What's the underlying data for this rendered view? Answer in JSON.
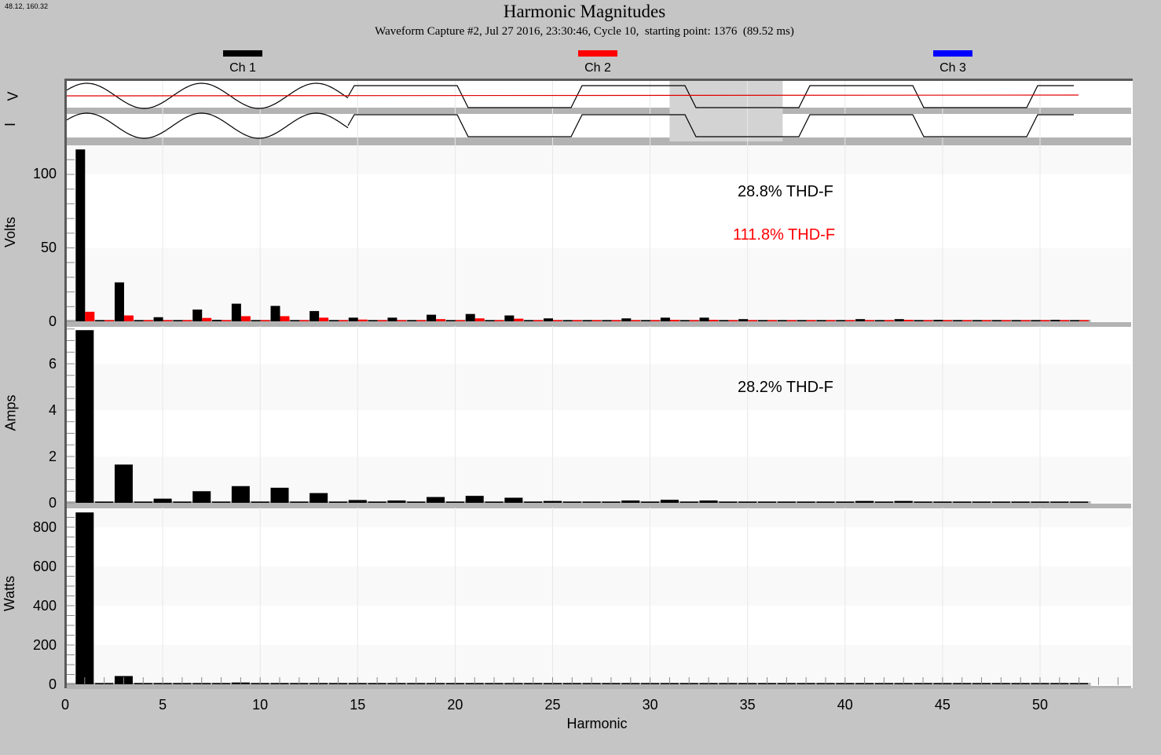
{
  "cursor_readout": "48.12, 160.32",
  "header": {
    "title": "Harmonic Magnitudes",
    "subtitle": "Waveform Capture #2, Jul 27 2016, 23:30:46, Cycle 10,  starting point: 1376  (89.52 ms)"
  },
  "legend": [
    {
      "label": "Ch 1",
      "color": "#000000"
    },
    {
      "label": "Ch 2",
      "color": "#ff0000"
    },
    {
      "label": "Ch 3",
      "color": "#0000ff"
    }
  ],
  "waveform_strip": {
    "labels": {
      "voltage": "V",
      "current": "I"
    },
    "highlight_window": {
      "start_harmonic_x": 31.0,
      "end_harmonic_x": 36.8
    }
  },
  "panels": {
    "volts": {
      "ylabel": "Volts",
      "yticks": [
        "0",
        "50",
        "100"
      ],
      "annotations": [
        {
          "text": "28.8% THD-F",
          "color": "#000000"
        },
        {
          "text": "111.8% THD-F",
          "color": "#ff0000"
        }
      ]
    },
    "amps": {
      "ylabel": "Amps",
      "yticks": [
        "0",
        "2",
        "4",
        "6"
      ],
      "annotations": [
        {
          "text": "28.2% THD-F",
          "color": "#000000"
        }
      ]
    },
    "watts": {
      "ylabel": "Watts",
      "yticks": [
        "0",
        "200",
        "400",
        "600",
        "800"
      ]
    }
  },
  "xaxis": {
    "label": "Harmonic",
    "ticks": [
      "0",
      "5",
      "10",
      "15",
      "20",
      "25",
      "30",
      "35",
      "40",
      "45",
      "50"
    ]
  },
  "chart_data": [
    {
      "type": "bar",
      "title": "Harmonic Magnitudes - Volts",
      "xlabel": "Harmonic",
      "ylabel": "Volts",
      "ylim": [
        0,
        120
      ],
      "grid": true,
      "categories": [
        1,
        2,
        3,
        4,
        5,
        6,
        7,
        8,
        9,
        10,
        11,
        12,
        13,
        14,
        15,
        16,
        17,
        18,
        19,
        20,
        21,
        22,
        23,
        24,
        25,
        26,
        27,
        28,
        29,
        30,
        31,
        32,
        33,
        34,
        35,
        36,
        37,
        38,
        39,
        40,
        41,
        42,
        43,
        44,
        45,
        46,
        47,
        48,
        49,
        50,
        51,
        52
      ],
      "series": [
        {
          "name": "Ch 1",
          "color": "#000000",
          "values": [
            117,
            0.8,
            26.5,
            0.3,
            2.8,
            0.3,
            8,
            1,
            12,
            0.8,
            10.5,
            0.3,
            7,
            0.3,
            2.5,
            0.3,
            2.5,
            0.3,
            4.5,
            0.3,
            5,
            0.3,
            4,
            0.3,
            2,
            0.3,
            0.3,
            0.3,
            2,
            0.3,
            2.5,
            0.3,
            2.5,
            0.3,
            1.5,
            0.3,
            0.3,
            0.3,
            0.3,
            0.3,
            1.5,
            0.3,
            1.5,
            0.3,
            1,
            0.3,
            0.3,
            0.3,
            0.3,
            0.3,
            1,
            0.3
          ]
        },
        {
          "name": "Ch 2",
          "color": "#ff0000",
          "values": [
            6.5,
            0.5,
            4,
            0.5,
            0.5,
            0.5,
            2.3,
            0.5,
            3.5,
            0.5,
            3.5,
            0.5,
            2.5,
            0.5,
            1.2,
            0.5,
            0.5,
            0.5,
            1.5,
            0.5,
            2,
            0.5,
            1.8,
            0.5,
            0.5,
            0.5,
            0.5,
            0.5,
            0.5,
            0.5,
            1,
            0.5,
            1,
            0.5,
            0.5,
            0.5,
            0.5,
            0.5,
            0.5,
            0.5,
            0.5,
            0.5,
            1,
            0.5,
            0.5,
            0.5,
            0.5,
            0.5,
            0.5,
            0.5,
            0.5,
            0.5
          ]
        }
      ],
      "annotations": [
        "28.8% THD-F",
        "111.8% THD-F"
      ]
    },
    {
      "type": "bar",
      "title": "Harmonic Magnitudes - Amps",
      "xlabel": "Harmonic",
      "ylabel": "Amps",
      "ylim": [
        0,
        7.5
      ],
      "grid": true,
      "categories": [
        1,
        2,
        3,
        4,
        5,
        6,
        7,
        8,
        9,
        10,
        11,
        12,
        13,
        14,
        15,
        16,
        17,
        18,
        19,
        20,
        21,
        22,
        23,
        24,
        25,
        26,
        27,
        28,
        29,
        30,
        31,
        32,
        33,
        34,
        35,
        36,
        37,
        38,
        39,
        40,
        41,
        42,
        43,
        44,
        45,
        46,
        47,
        48,
        49,
        50,
        51,
        52
      ],
      "series": [
        {
          "name": "Ch 1",
          "color": "#000000",
          "values": [
            7.45,
            0.05,
            1.65,
            0.03,
            0.18,
            0.03,
            0.5,
            0.05,
            0.72,
            0.05,
            0.65,
            0.05,
            0.42,
            0.03,
            0.12,
            0.03,
            0.1,
            0.03,
            0.25,
            0.05,
            0.3,
            0.05,
            0.22,
            0.03,
            0.08,
            0.03,
            0.03,
            0.03,
            0.1,
            0.03,
            0.13,
            0.03,
            0.1,
            0.03,
            0.05,
            0.03,
            0.03,
            0.03,
            0.03,
            0.03,
            0.08,
            0.03,
            0.08,
            0.03,
            0.05,
            0.03,
            0.03,
            0.03,
            0.03,
            0.03,
            0.05,
            0.03
          ]
        }
      ],
      "annotations": [
        "28.2% THD-F"
      ]
    },
    {
      "type": "bar",
      "title": "Harmonic Magnitudes - Watts",
      "xlabel": "Harmonic",
      "ylabel": "Watts",
      "ylim": [
        0,
        880
      ],
      "grid": true,
      "categories": [
        1,
        2,
        3,
        4,
        5,
        6,
        7,
        8,
        9,
        10,
        11,
        12,
        13,
        14,
        15,
        16,
        17,
        18,
        19,
        20,
        21,
        22,
        23,
        24,
        25,
        26,
        27,
        28,
        29,
        30,
        31,
        32,
        33,
        34,
        35,
        36,
        37,
        38,
        39,
        40,
        41,
        42,
        43,
        44,
        45,
        46,
        47,
        48,
        49,
        50,
        51,
        52
      ],
      "series": [
        {
          "name": "Ch 1",
          "color": "#000000",
          "values": [
            875,
            2,
            42,
            1,
            1,
            1,
            1,
            1,
            9,
            1,
            5,
            1,
            1,
            1,
            1,
            1,
            1,
            1,
            1,
            1,
            1,
            1,
            1,
            1,
            1,
            1,
            1,
            1,
            1,
            1,
            1,
            1,
            1,
            1,
            1,
            1,
            1,
            1,
            1,
            1,
            1,
            1,
            1,
            1,
            1,
            1,
            1,
            1,
            1,
            1,
            1,
            1
          ]
        }
      ]
    }
  ]
}
